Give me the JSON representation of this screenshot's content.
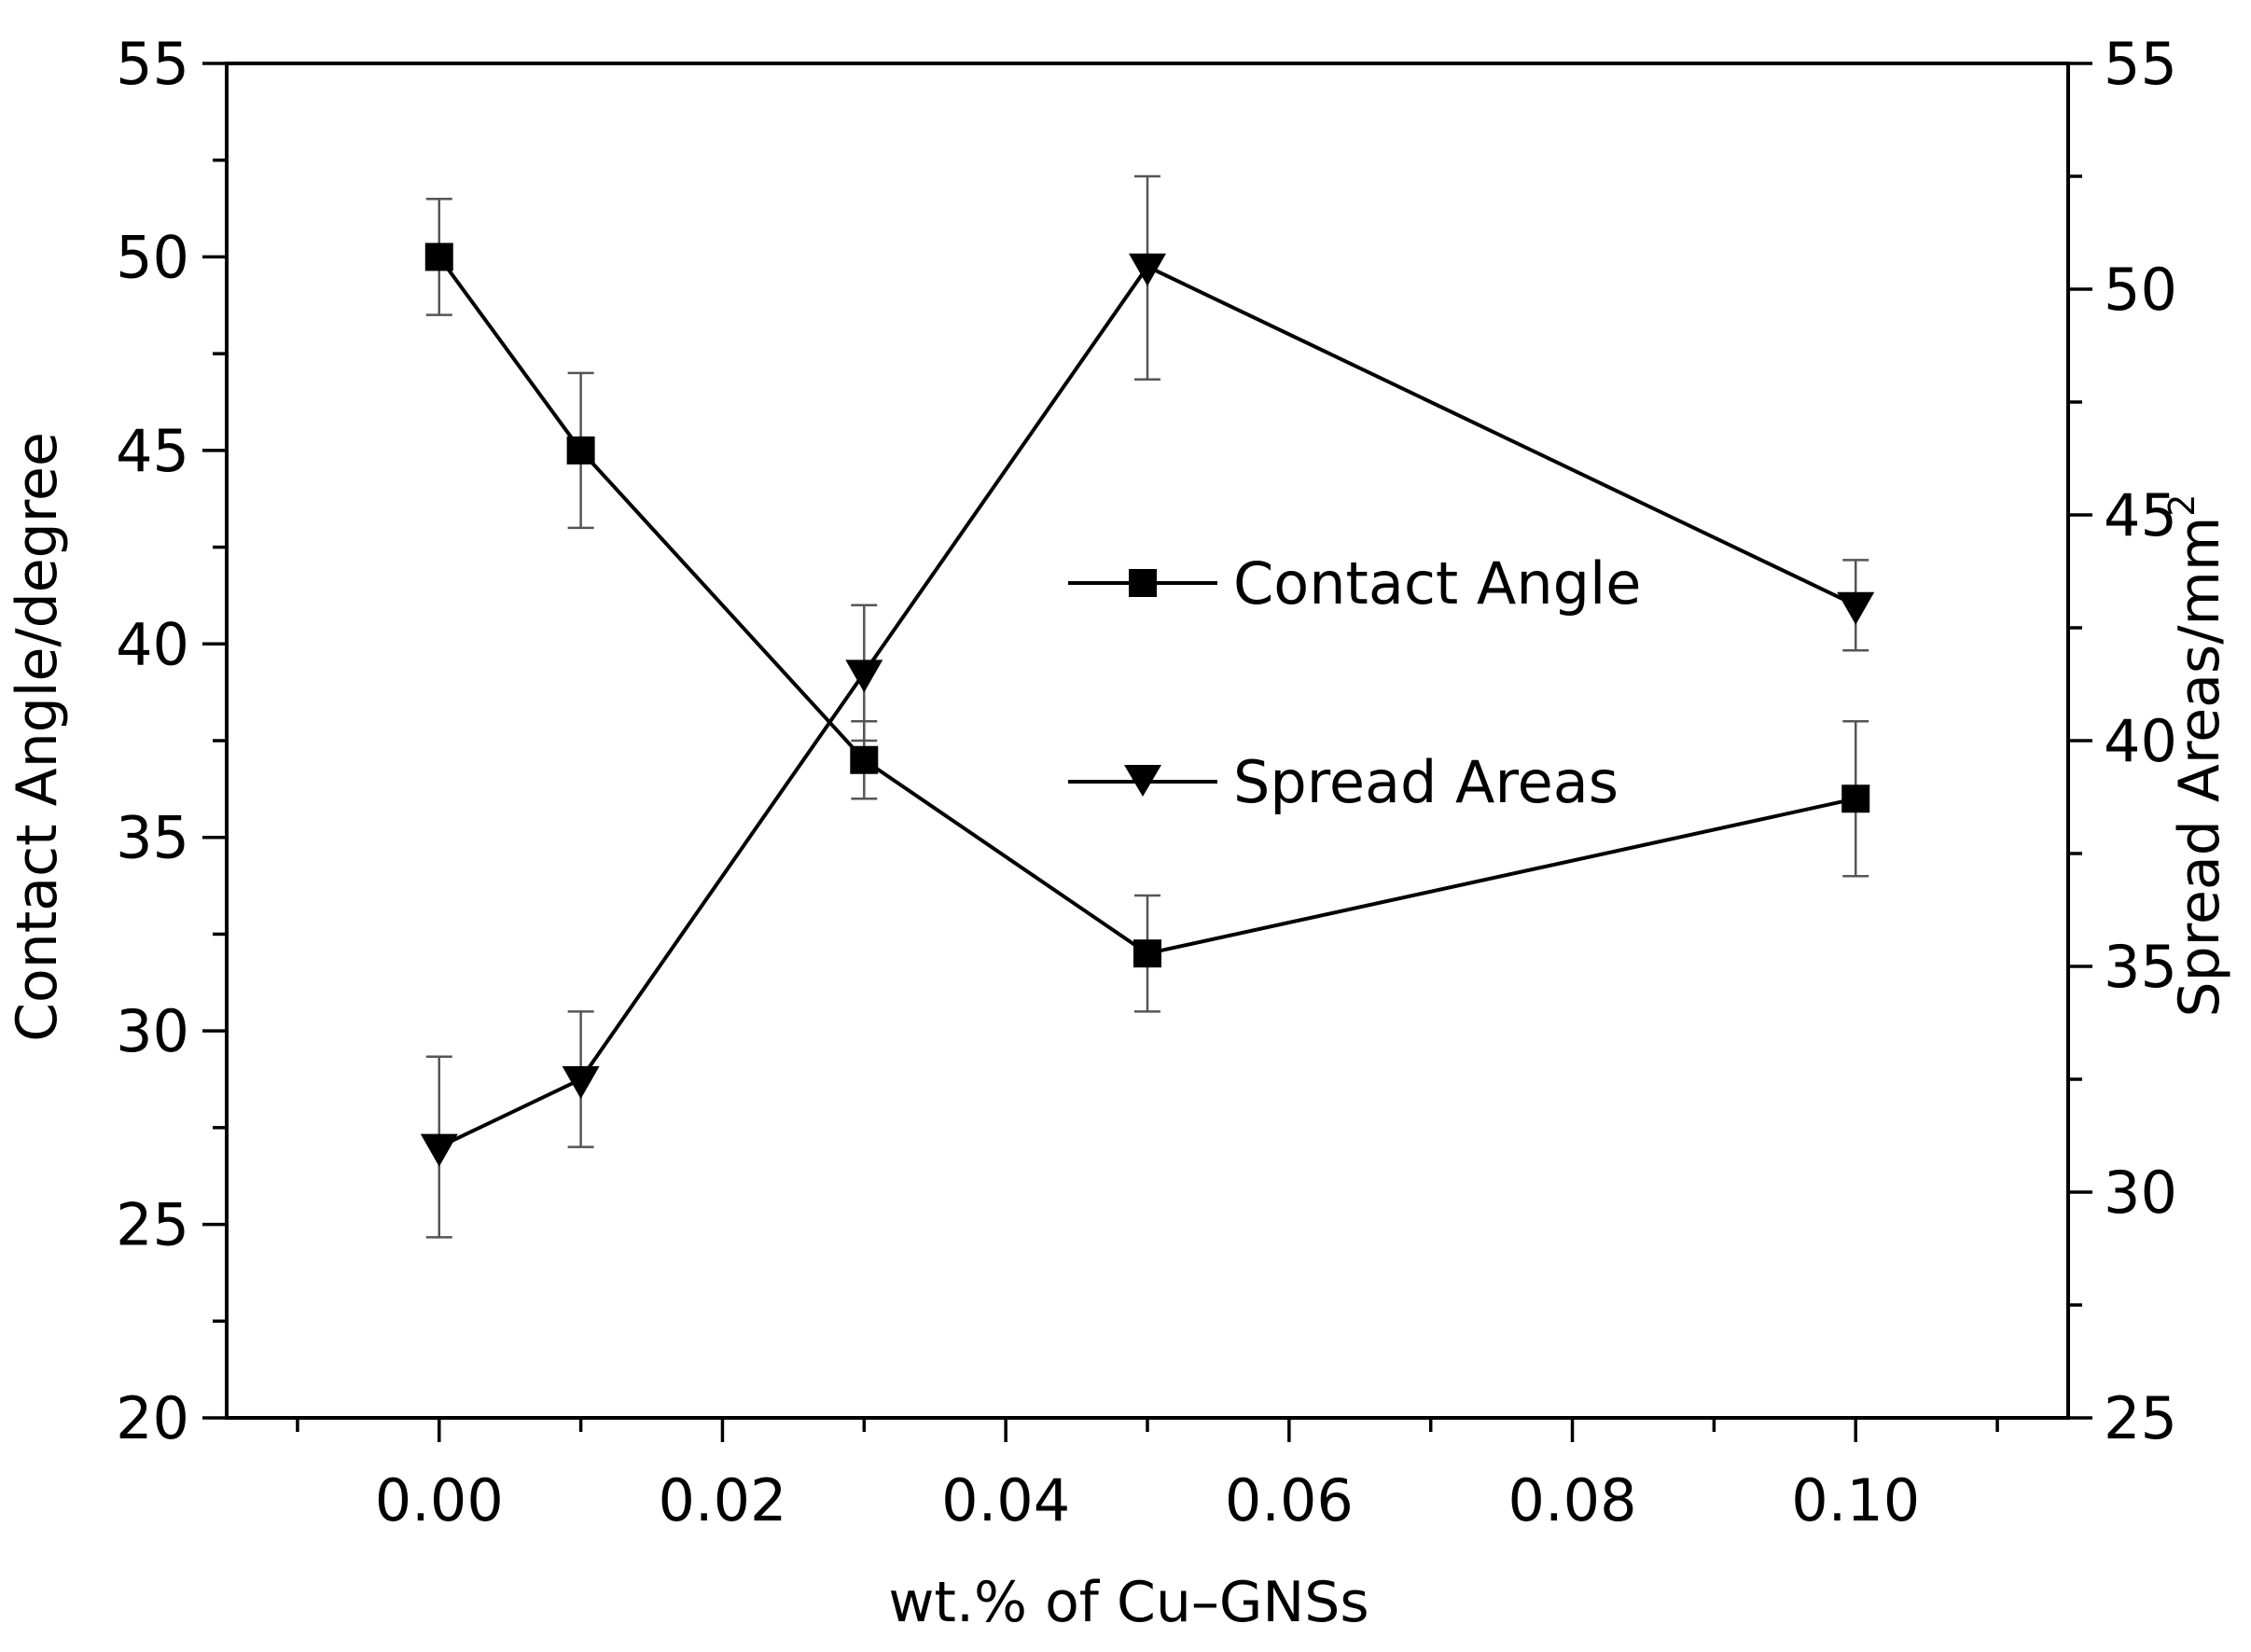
{
  "chart_data": {
    "type": "line",
    "title": "",
    "xlabel": "wt.% of Cu–GNSs",
    "ylabel_left": "Contact Angle/degree",
    "ylabel_right": "Spread Areas/mm",
    "ylabel_right_superscript": "2",
    "x": [
      0.0,
      0.01,
      0.03,
      0.05,
      0.1
    ],
    "xlim": [
      -0.015,
      0.115
    ],
    "xticks": [
      0.0,
      0.02,
      0.04,
      0.06,
      0.08,
      0.1
    ],
    "xtick_labels": [
      "0.00",
      "0.02",
      "0.04",
      "0.06",
      "0.08",
      "0.10"
    ],
    "ylim_left": [
      20,
      55
    ],
    "yticks_left": [
      20,
      25,
      30,
      35,
      40,
      45,
      50,
      55
    ],
    "ytick_labels_left": [
      "20",
      "25",
      "30",
      "35",
      "40",
      "45",
      "50",
      "55"
    ],
    "ylim_right": [
      25,
      55
    ],
    "yticks_right": [
      25,
      30,
      35,
      40,
      45,
      50,
      55
    ],
    "ytick_labels_right": [
      "25",
      "30",
      "35",
      "40",
      "45",
      "50",
      "55"
    ],
    "legend_position": "center-right",
    "series": [
      {
        "name": "Contact Angle",
        "axis": "left",
        "marker": "square",
        "values": [
          50,
          45,
          37,
          32,
          36
        ],
        "err_low": [
          48.5,
          43,
          36,
          30.5,
          34
        ],
        "err_high": [
          51.5,
          47,
          38,
          33.5,
          38
        ]
      },
      {
        "name": "Spread Areas",
        "axis": "right",
        "marker": "triangle-down",
        "values": [
          31,
          32.5,
          41.5,
          50.5,
          43
        ],
        "err_low": [
          29,
          31,
          40,
          48,
          42
        ],
        "err_high": [
          33,
          34,
          43,
          52.5,
          44
        ]
      }
    ]
  }
}
